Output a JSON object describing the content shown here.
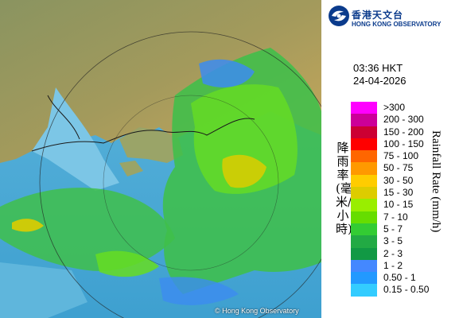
{
  "org": {
    "name_cn": "香港天文台",
    "name_en": "HONG KONG OBSERVATORY"
  },
  "timestamp": {
    "time": "03:36 HKT",
    "date": "24-04-2026"
  },
  "copyright": "© Hong Kong Observatory",
  "legend": {
    "title_cn": "降雨率(毫米/小時)",
    "title_en": "Rainfall Rate (mm/h)",
    "items": [
      {
        "label": ">300",
        "color": "#ff00ff"
      },
      {
        "label": "200 - 300",
        "color": "#cc0099"
      },
      {
        "label": "150 - 200",
        "color": "#cc0033"
      },
      {
        "label": "100 - 150",
        "color": "#ff0000"
      },
      {
        "label": "75 - 100",
        "color": "#ff6600"
      },
      {
        "label": "50 - 75",
        "color": "#ff9900"
      },
      {
        "label": "30 - 50",
        "color": "#ffcc00"
      },
      {
        "label": "15 - 30",
        "color": "#ddcc00"
      },
      {
        "label": "10 - 15",
        "color": "#99ee00"
      },
      {
        "label": "7 - 10",
        "color": "#66dd00"
      },
      {
        "label": "5 - 7",
        "color": "#33cc33"
      },
      {
        "label": "3 - 5",
        "color": "#22aa44"
      },
      {
        "label": "2 - 3",
        "color": "#119944"
      },
      {
        "label": "1 - 2",
        "color": "#4488ff"
      },
      {
        "label": "0.50 - 1",
        "color": "#2299ff"
      },
      {
        "label": "0.15 - 0.50",
        "color": "#33ccff"
      }
    ]
  }
}
